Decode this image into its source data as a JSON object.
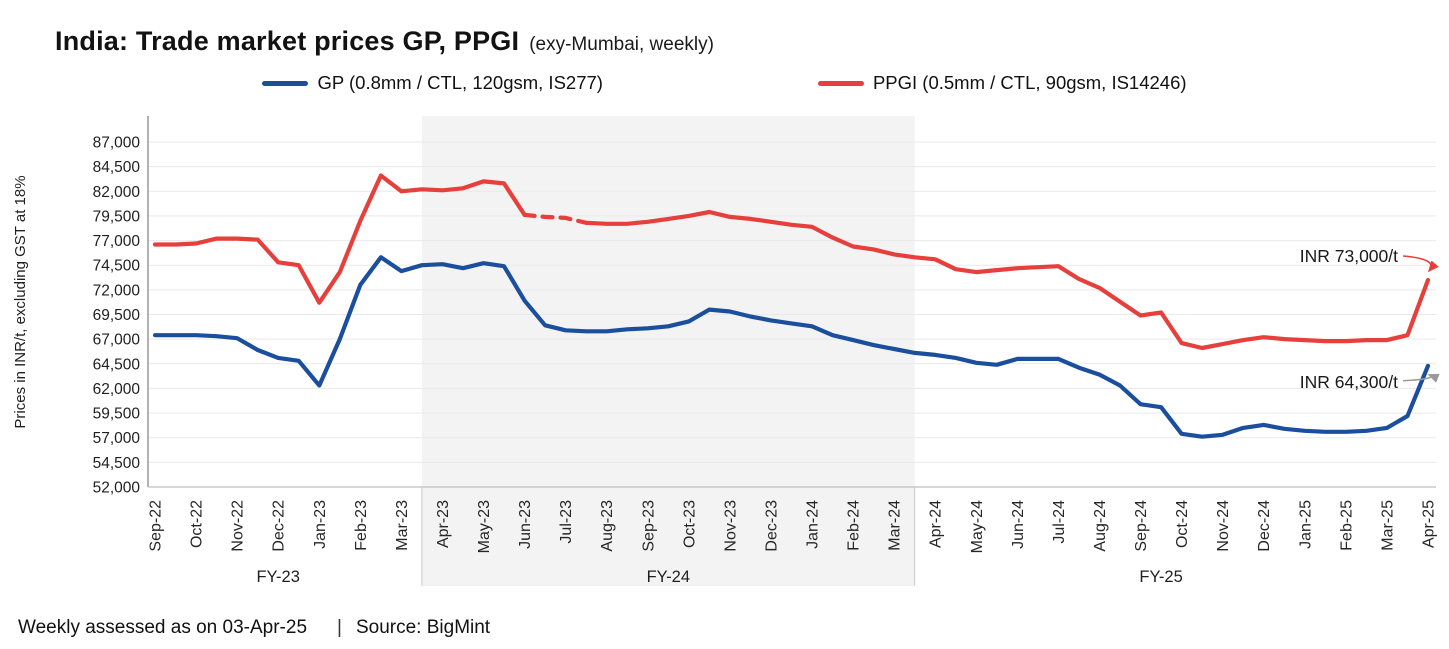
{
  "header": {
    "title": "India: Trade market prices GP, PPGI",
    "subtitle": "(exy-Mumbai, weekly)"
  },
  "footer": {
    "assessed_text": "Weekly assessed as on 03-Apr-25",
    "divider": "|",
    "source_text": "Source: BigMint"
  },
  "chart_data": {
    "type": "line",
    "title": "India: Trade market prices GP, PPGI (exy-Mumbai, weekly)",
    "ylabel": "Prices in INR/t, excluding GST at 18%",
    "ylim": [
      52000,
      87000
    ],
    "ytick_step": 2500,
    "grid": "horizontal",
    "x_step_months": 0.5,
    "x_labels": [
      "Sep-22",
      "Oct-22",
      "Nov-22",
      "Dec-22",
      "Jan-23",
      "Feb-23",
      "Mar-23",
      "Apr-23",
      "May-23",
      "Jun-23",
      "Jul-23",
      "Aug-23",
      "Sep-23",
      "Oct-23",
      "Nov-23",
      "Dec-23",
      "Jan-24",
      "Feb-24",
      "Mar-24",
      "Apr-24",
      "May-24",
      "Jun-24",
      "Jul-24",
      "Aug-24",
      "Sep-24",
      "Oct-24",
      "Nov-24",
      "Dec-24",
      "Jan-25",
      "Feb-25",
      "Mar-25",
      "Apr-25"
    ],
    "fy_groups": [
      {
        "label": "FY-23",
        "from": 0,
        "to": 6
      },
      {
        "label": "FY-24",
        "from": 7,
        "to": 18
      },
      {
        "label": "FY-25",
        "from": 19,
        "to": 30
      }
    ],
    "separators_x": [
      6.5,
      18.5
    ],
    "band": {
      "from": 6.5,
      "to": 18.5,
      "color": "#f3f3f3"
    },
    "series": [
      {
        "name": "GP",
        "label": "GP (0.8mm / CTL, 120gsm, IS277)",
        "color": "#1b4f9e",
        "values": [
          67400,
          67400,
          67400,
          67300,
          67100,
          65900,
          65100,
          64800,
          62300,
          67000,
          72500,
          75300,
          73900,
          74500,
          74600,
          74200,
          74700,
          74400,
          70900,
          68400,
          67900,
          67800,
          67800,
          68000,
          68100,
          68300,
          68800,
          70000,
          69800,
          69300,
          68900,
          68600,
          68300,
          67400,
          66900,
          66400,
          66000,
          65600,
          65400,
          65100,
          64600,
          64400,
          65000,
          65000,
          65000,
          64100,
          63400,
          62300,
          60400,
          60100,
          57400,
          57100,
          57300,
          58000,
          58300,
          57900,
          57700,
          57600,
          57600,
          57700,
          58000,
          59200,
          64300
        ]
      },
      {
        "name": "PPGI",
        "label": "PPGI (0.5mm / CTL, 90gsm, IS14246)",
        "color": "#e63f3c",
        "dash_x_range": [
          9,
          10.5
        ],
        "values": [
          76600,
          76600,
          76700,
          77200,
          77200,
          77100,
          74800,
          74500,
          70700,
          73800,
          79000,
          83600,
          82000,
          82200,
          82100,
          82300,
          83000,
          82800,
          79600,
          79400,
          79300,
          78800,
          78700,
          78700,
          78900,
          79200,
          79500,
          79900,
          79400,
          79200,
          78900,
          78600,
          78400,
          77300,
          76400,
          76100,
          75600,
          75300,
          75100,
          74100,
          73800,
          74000,
          74200,
          74300,
          74400,
          73100,
          72200,
          70800,
          69400,
          69700,
          66600,
          66100,
          66500,
          66900,
          67200,
          67000,
          66900,
          66800,
          66800,
          66900,
          66900,
          67400,
          73000
        ]
      }
    ],
    "annotations": [
      {
        "text": "INR 73,000/t",
        "series": "PPGI",
        "value": 73000,
        "position": "above",
        "arrow_color": "#e63f3c"
      },
      {
        "text": "INR 64,300/t",
        "series": "GP",
        "value": 64300,
        "position": "below",
        "arrow_color": "#9a9a9a"
      }
    ]
  }
}
